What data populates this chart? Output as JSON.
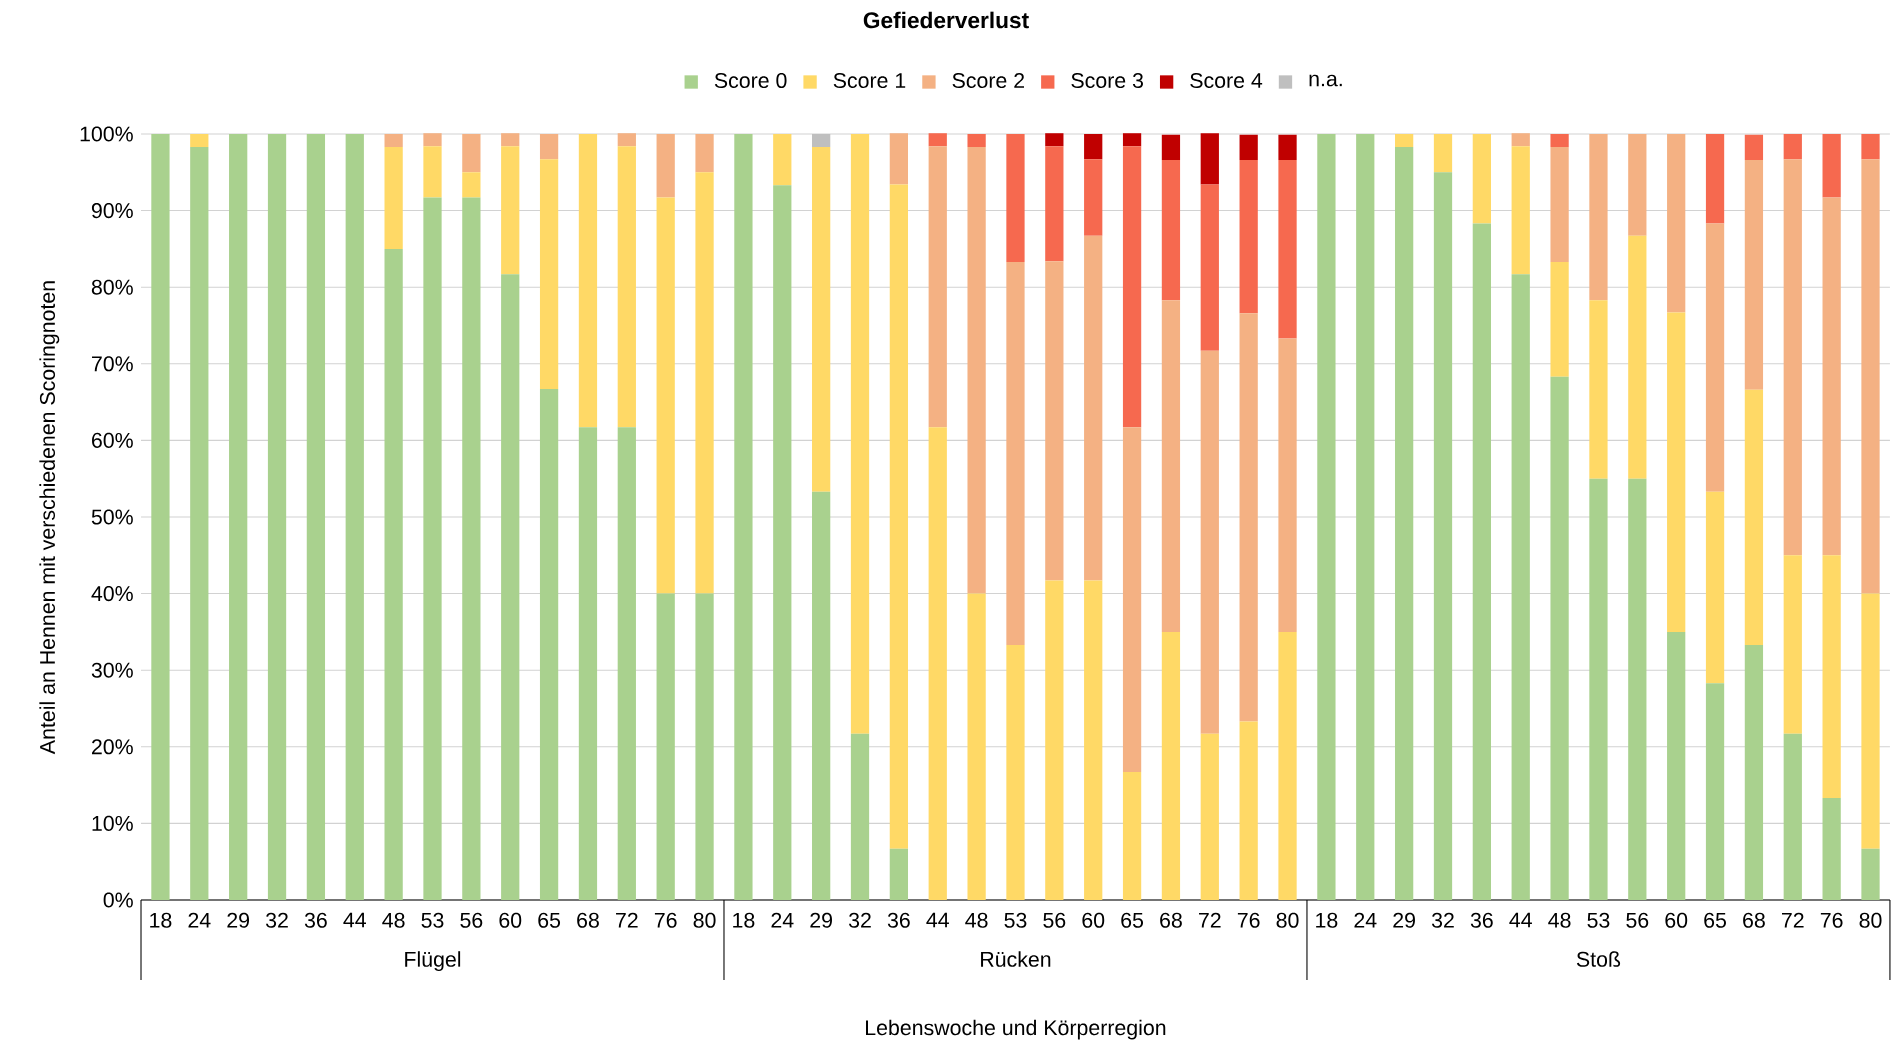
{
  "chart_data": {
    "type": "bar",
    "title": "Gefiederverlust",
    "xlabel": "Lebenswoche und Körperregion",
    "ylabel": "Anteil an Hennen mit verschiedenen Scoringnoten",
    "categories": [
      "18",
      "24",
      "29",
      "32",
      "36",
      "44",
      "48",
      "53",
      "56",
      "60",
      "65",
      "68",
      "72",
      "76",
      "80",
      "18",
      "24",
      "29",
      "32",
      "36",
      "44",
      "48",
      "53",
      "56",
      "60",
      "65",
      "68",
      "72",
      "76",
      "80",
      "18",
      "24",
      "29",
      "32",
      "36",
      "44",
      "48",
      "53",
      "56",
      "60",
      "65",
      "68",
      "72",
      "76",
      "80"
    ],
    "annotations": [
      "Flügel",
      "Rücken",
      "Stoß"
    ],
    "stacked": true,
    "grid": "y",
    "legend": "top",
    "ylim": [
      0,
      100
    ],
    "yticks": [
      {
        "value": 0,
        "label": "0%"
      },
      {
        "value": 10,
        "label": "10%"
      },
      {
        "value": 20,
        "label": "20%"
      },
      {
        "value": 30,
        "label": "30%"
      },
      {
        "value": 40,
        "label": "40%"
      },
      {
        "value": 50,
        "label": "50%"
      },
      {
        "value": 60,
        "label": "60%"
      },
      {
        "value": 70,
        "label": "70%"
      },
      {
        "value": 80,
        "label": "80%"
      },
      {
        "value": 90,
        "label": "90%"
      },
      {
        "value": 100,
        "label": "100%"
      }
    ],
    "series": [
      {
        "name": "Score 0",
        "color": "#a9d18e",
        "values": [
          100,
          98.3,
          100,
          100,
          100,
          100,
          85,
          91.7,
          91.7,
          81.7,
          66.7,
          61.7,
          61.7,
          40,
          40,
          100,
          93.3,
          53.3,
          21.7,
          6.7,
          0,
          0,
          0,
          0,
          0,
          0,
          0,
          0,
          0,
          0,
          100,
          100,
          98.3,
          95,
          88.3,
          81.7,
          68.3,
          55,
          55,
          35,
          28.3,
          33.3,
          21.7,
          13.3,
          6.7
        ]
      },
      {
        "name": "Score 1",
        "color": "#ffd966",
        "values": [
          0,
          1.7,
          0,
          0,
          0,
          0,
          13.3,
          6.7,
          3.3,
          16.7,
          30,
          38.3,
          36.7,
          51.7,
          55,
          0,
          6.7,
          45,
          78.3,
          86.7,
          61.7,
          40,
          33.3,
          41.7,
          41.7,
          16.7,
          35,
          21.7,
          23.3,
          35,
          0,
          0,
          1.7,
          5,
          11.7,
          16.7,
          15,
          23.3,
          31.7,
          41.7,
          25,
          33.3,
          23.3,
          31.7,
          33.3
        ]
      },
      {
        "name": "Score 2",
        "color": "#f4b183",
        "values": [
          0,
          0,
          0,
          0,
          0,
          0,
          1.7,
          1.7,
          5,
          1.7,
          3.3,
          0,
          1.7,
          8.3,
          5,
          0,
          0,
          0,
          0,
          6.7,
          36.7,
          58.3,
          50,
          41.7,
          45,
          45,
          43.3,
          50,
          53.3,
          38.3,
          0,
          0,
          0,
          0,
          0,
          1.7,
          15,
          21.7,
          13.3,
          23.3,
          35,
          30,
          51.7,
          46.7,
          56.7
        ]
      },
      {
        "name": "Score 3",
        "color": "#f6694f",
        "values": [
          0,
          0,
          0,
          0,
          0,
          0,
          0,
          0,
          0,
          0,
          0,
          0,
          0,
          0,
          0,
          0,
          0,
          0,
          0,
          0,
          1.7,
          1.7,
          16.7,
          15,
          10,
          36.7,
          18.3,
          21.7,
          20,
          23.3,
          0,
          0,
          0,
          0,
          0,
          0,
          1.7,
          0,
          0,
          0,
          11.7,
          3.3,
          3.3,
          8.3,
          3.3
        ]
      },
      {
        "name": "Score 4",
        "color": "#c00000",
        "values": [
          0,
          0,
          0,
          0,
          0,
          0,
          0,
          0,
          0,
          0,
          0,
          0,
          0,
          0,
          0,
          0,
          0,
          0,
          0,
          0,
          0,
          0,
          0,
          1.7,
          3.3,
          1.7,
          3.3,
          6.7,
          3.3,
          3.3,
          0,
          0,
          0,
          0,
          0,
          0,
          0,
          0,
          0,
          0,
          0,
          0,
          0,
          0,
          0
        ]
      },
      {
        "name": "n.a.",
        "color": "#bfbfbf",
        "values": [
          0,
          0,
          0,
          0,
          0,
          0,
          0,
          0,
          0,
          0,
          0,
          0,
          0,
          0,
          0,
          0,
          0,
          1.7,
          0,
          0,
          0,
          0,
          0,
          0,
          0,
          0,
          0,
          0,
          0,
          0,
          0,
          0,
          0,
          0,
          0,
          0,
          0,
          0,
          0,
          0,
          0,
          0,
          0,
          0,
          0
        ]
      }
    ]
  }
}
